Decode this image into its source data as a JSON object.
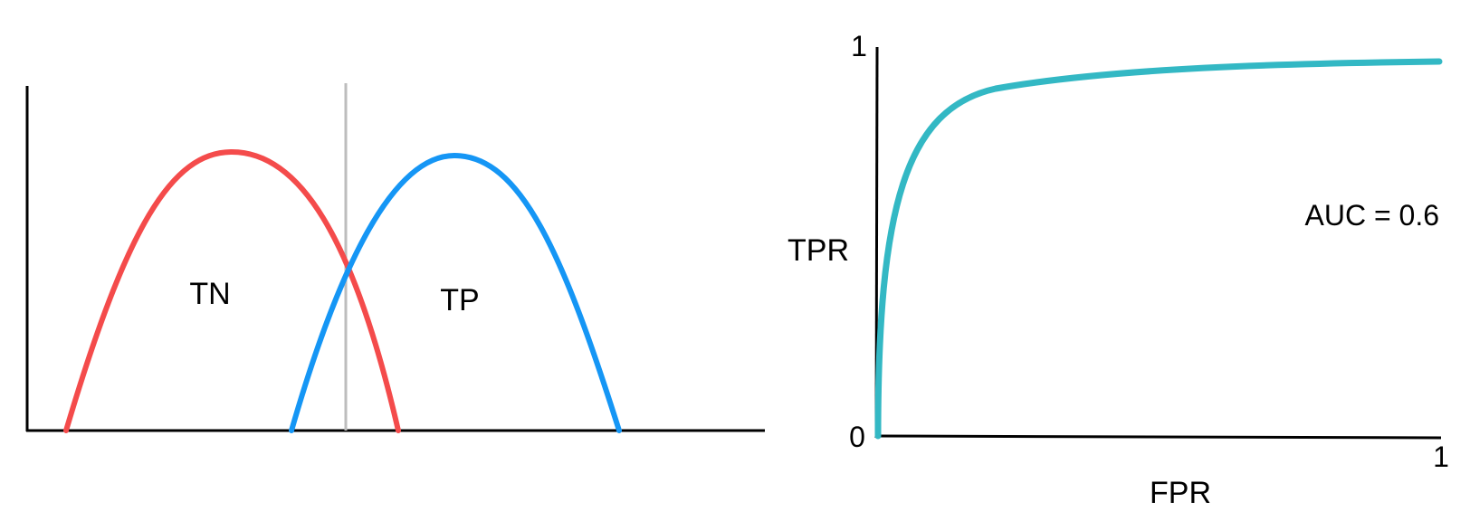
{
  "left_panel": {
    "curves": [
      {
        "name": "negative-class",
        "color": "#f44b4b",
        "region_label": "TN"
      },
      {
        "name": "positive-class",
        "color": "#1596f5",
        "region_label": "TP"
      }
    ],
    "threshold_color": "#bdbdbd",
    "axis_color": "#000000"
  },
  "right_panel": {
    "y_axis": {
      "label": "TPR",
      "tick_min": "0",
      "tick_max": "1"
    },
    "x_axis": {
      "label": "FPR",
      "tick_max": "1"
    },
    "annotation": "AUC = 0.6",
    "curve_color": "#33b8c4",
    "axis_color": "#000000"
  }
}
